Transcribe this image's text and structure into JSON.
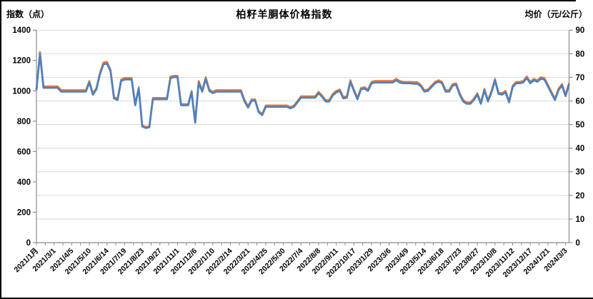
{
  "chart": {
    "title": "柏籽羊胴体价格指数",
    "left_axis_title": "指数（点）",
    "right_axis_title": "均价（元/公斤）"
  },
  "chart_data": {
    "type": "line",
    "title": "柏籽羊胴体价格指数",
    "left_axis_label": "指数（点）",
    "right_axis_label": "均价（元/公斤）",
    "left_ylim": [
      0,
      1400
    ],
    "left_ticks": [
      0,
      200,
      400,
      600,
      800,
      1000,
      1200,
      1400
    ],
    "right_ylim": [
      0,
      90
    ],
    "right_ticks": [
      0,
      10,
      20,
      30,
      40,
      50,
      60,
      70,
      80,
      90
    ],
    "grid": "horizontal gridlines at every 10 of right axis, light gray",
    "legend": "none",
    "x_tick_labels": [
      "2021/1月",
      "2021/3/1",
      "2021/4/5",
      "2021/5/10",
      "2021/6/14",
      "2021/7/19",
      "2021/8/23",
      "2021/9/27",
      "2021/11/1",
      "2021/12/6",
      "2022/1/10",
      "2022/2/14",
      "2022/3/21",
      "2022/4/25",
      "2022/5/30",
      "2022/7/4",
      "2022/8/8",
      "2022/9/11",
      "2022/10/17",
      "2023/1/29",
      "2023/3/6",
      "2023/4/9",
      "2023/5/14",
      "2023/6/18",
      "2023/7/23",
      "2023/8/27",
      "2023/10/8",
      "2023/11/12",
      "2023/12/17",
      "2024/1/21",
      "2024/3/3"
    ],
    "points_per_label": 5,
    "series": [
      {
        "name": "指数（点）",
        "axis": "left",
        "color": "#4F81BD",
        "values": [
          1005,
          1245,
          1020,
          1020,
          1020,
          1020,
          1020,
          995,
          995,
          995,
          995,
          995,
          995,
          995,
          995,
          1055,
          975,
          1010,
          1110,
          1175,
          1180,
          1130,
          950,
          940,
          1065,
          1075,
          1075,
          1075,
          905,
          1015,
          765,
          755,
          760,
          945,
          945,
          945,
          945,
          945,
          1085,
          1090,
          1090,
          905,
          905,
          905,
          990,
          790,
          1055,
          995,
          1080,
          1000,
          985,
          995,
          995,
          995,
          995,
          995,
          995,
          995,
          995,
          930,
          890,
          935,
          935,
          860,
          840,
          895,
          895,
          895,
          895,
          895,
          895,
          895,
          885,
          895,
          925,
          955,
          955,
          955,
          955,
          955,
          985,
          960,
          930,
          930,
          970,
          990,
          1000,
          950,
          955,
          1060,
          1000,
          945,
          1010,
          1015,
          1000,
          1050,
          1055,
          1055,
          1055,
          1055,
          1055,
          1055,
          1070,
          1055,
          1050,
          1050,
          1050,
          1047,
          1047,
          1030,
          995,
          1000,
          1025,
          1050,
          1060,
          1050,
          995,
          995,
          1035,
          1040,
          975,
          930,
          915,
          915,
          940,
          975,
          915,
          1005,
          930,
          990,
          1070,
          980,
          975,
          990,
          925,
          1025,
          1050,
          1050,
          1055,
          1085,
          1050,
          1070,
          1060,
          1080,
          1075,
          1030,
          985,
          940,
          1005,
          1035,
          965,
          1045
        ]
      },
      {
        "name": "均价（元/公斤）",
        "axis": "right",
        "color": "#F0782A",
        "values": [
          65.2,
          80.8,
          66.2,
          66.2,
          66.2,
          66.2,
          66.2,
          64.6,
          64.6,
          64.6,
          64.6,
          64.6,
          64.6,
          64.6,
          64.6,
          68.5,
          63.3,
          65.5,
          72.0,
          76.3,
          76.6,
          73.3,
          61.7,
          61.0,
          69.1,
          69.8,
          69.8,
          69.8,
          58.7,
          65.9,
          49.7,
          49.0,
          49.3,
          61.3,
          61.3,
          61.3,
          61.3,
          61.3,
          70.4,
          70.7,
          70.7,
          58.7,
          58.7,
          58.7,
          64.3,
          51.3,
          68.5,
          64.6,
          70.1,
          64.9,
          63.9,
          64.6,
          64.6,
          64.6,
          64.6,
          64.6,
          64.6,
          64.6,
          64.6,
          60.4,
          57.8,
          60.7,
          60.7,
          55.8,
          54.5,
          58.1,
          58.1,
          58.1,
          58.1,
          58.1,
          58.1,
          58.1,
          57.4,
          58.1,
          60.0,
          62.0,
          62.0,
          62.0,
          62.0,
          62.0,
          63.9,
          62.3,
          60.4,
          60.4,
          63.0,
          64.3,
          64.9,
          61.7,
          62.0,
          68.8,
          64.9,
          61.3,
          65.5,
          65.9,
          64.9,
          68.1,
          68.5,
          68.5,
          68.5,
          68.5,
          68.5,
          68.5,
          69.4,
          68.5,
          68.1,
          68.1,
          68.1,
          68.0,
          68.0,
          66.8,
          64.6,
          64.9,
          66.5,
          68.1,
          68.8,
          68.1,
          64.6,
          64.6,
          67.2,
          67.5,
          63.3,
          60.4,
          59.4,
          59.4,
          61.0,
          63.3,
          59.4,
          65.2,
          60.4,
          64.3,
          69.4,
          63.6,
          63.3,
          64.3,
          60.0,
          66.5,
          68.1,
          68.1,
          68.5,
          70.4,
          68.1,
          69.4,
          68.8,
          70.1,
          69.8,
          66.8,
          63.9,
          61.0,
          65.2,
          67.2,
          62.6,
          67.8
        ]
      }
    ],
    "style": {
      "gridline_color": "#D9D9D9",
      "axis_color": "#8C8C8C",
      "background": "#FFFFFF"
    }
  }
}
